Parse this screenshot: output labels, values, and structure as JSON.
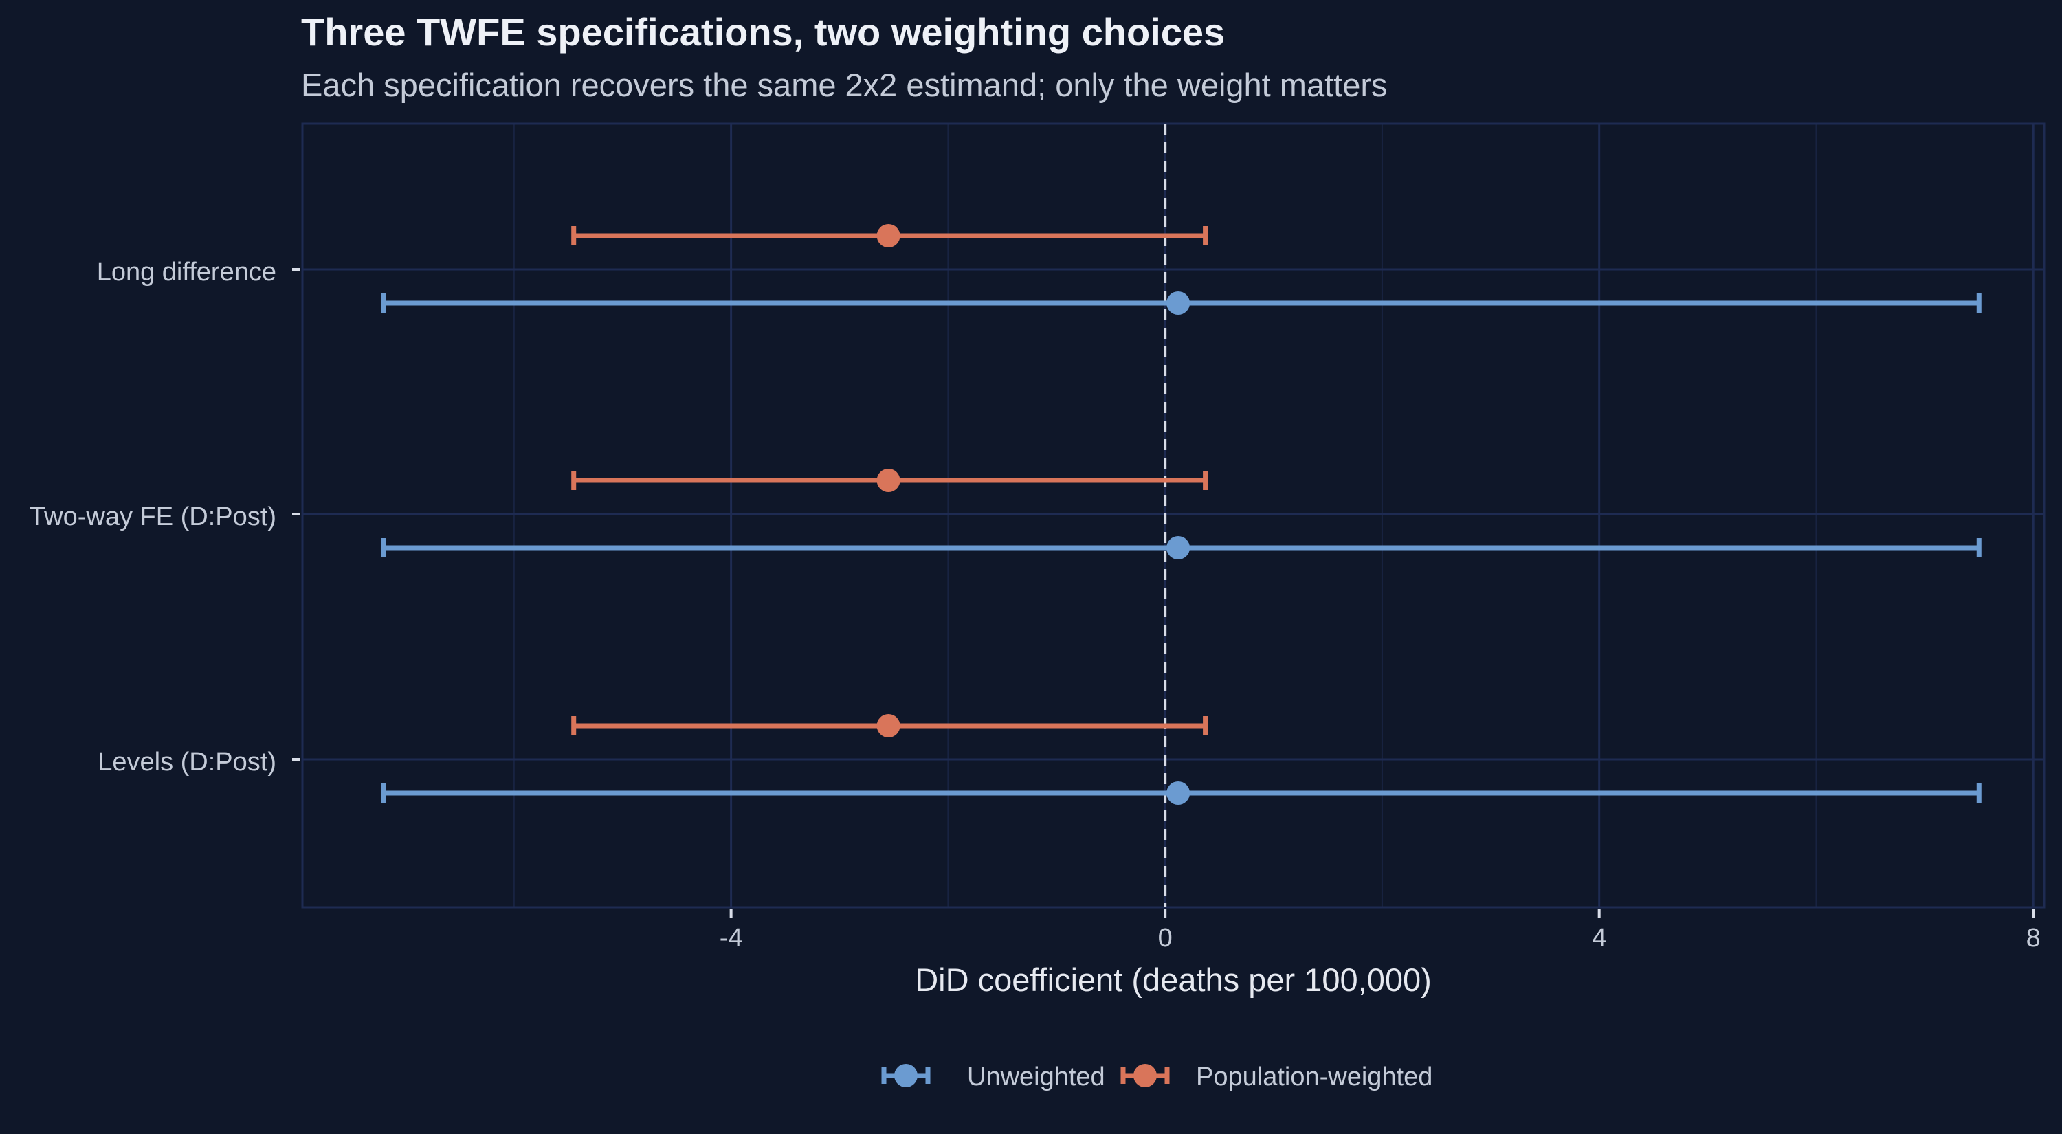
{
  "title": "Three TWFE specifications, two weighting choices",
  "subtitle": "Each specification recovers the same 2x2 estimand; only the weight matters",
  "colors": {
    "background": "#0f1729",
    "grid": "#1e2b52",
    "unweighted": "#6b9bd1",
    "weighted": "#d9755a",
    "zero_line": "#d8dde8",
    "text": "#c4cbd8"
  },
  "chart_data": {
    "type": "dot-and-whisker",
    "title": "Three TWFE specifications, two weighting choices",
    "subtitle": "Each specification recovers the same 2x2 estimand; only the weight matters",
    "xlabel": "DiD coefficient (deaths per 100,000)",
    "xlim": [
      -7.95,
      8.1
    ],
    "x_ticks": [
      -4,
      0,
      4,
      8
    ],
    "x_tick_labels": [
      "-4",
      "0",
      "4",
      "8"
    ],
    "reference_line": 0,
    "categories": [
      "Long difference",
      "Two-way FE (D:Post)",
      "Levels (D:Post)"
    ],
    "legend": {
      "position": "bottom"
    },
    "grid": true,
    "series": [
      {
        "name": "Unweighted",
        "color": "#6b9bd1",
        "estimates": [
          0.12,
          0.12,
          0.12
        ],
        "lower": [
          -7.2,
          -7.2,
          -7.2
        ],
        "upper": [
          7.5,
          7.5,
          7.5
        ]
      },
      {
        "name": "Population-weighted",
        "color": "#d9755a",
        "estimates": [
          -2.55,
          -2.55,
          -2.55
        ],
        "lower": [
          -5.45,
          -5.45,
          -5.45
        ],
        "upper": [
          0.37,
          0.37,
          0.37
        ]
      }
    ]
  }
}
